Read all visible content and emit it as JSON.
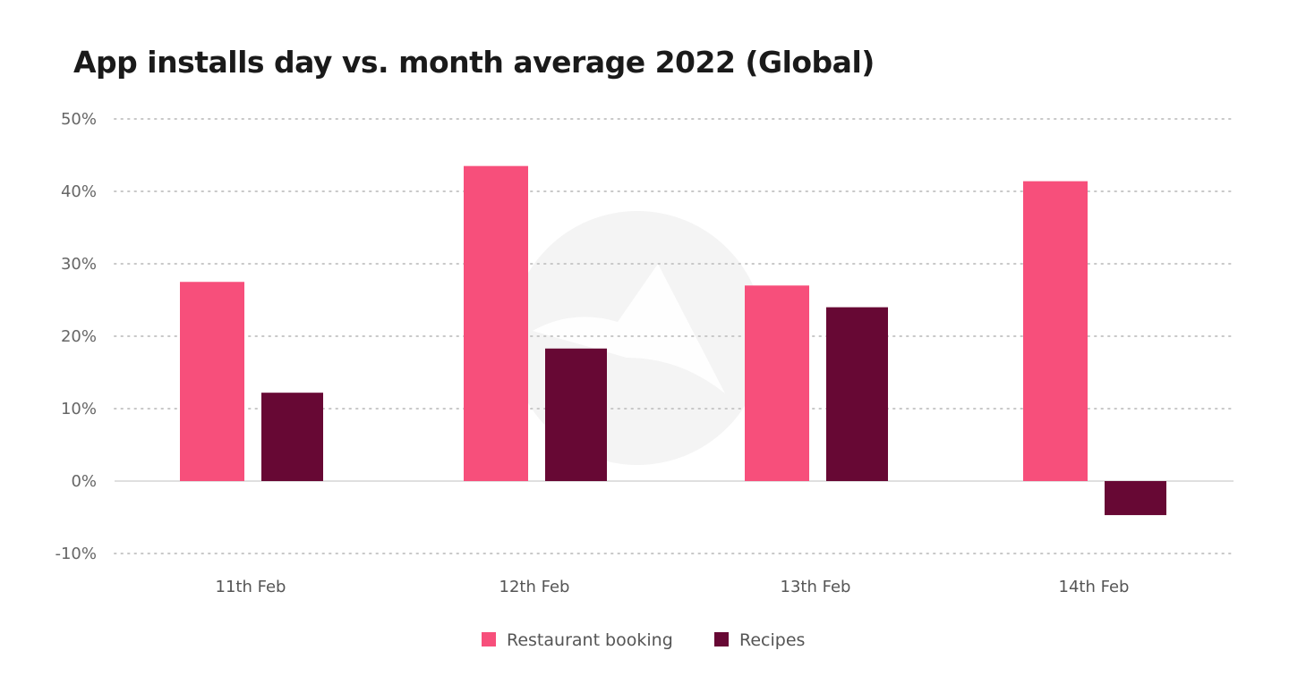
{
  "chart_data": {
    "type": "bar",
    "title": "App installs day vs. month average 2022 (Global)",
    "xlabel": "",
    "ylabel": "",
    "categories": [
      "11th Feb",
      "12th Feb",
      "13th Feb",
      "14th Feb"
    ],
    "series": [
      {
        "name": "Restaurant booking",
        "color": "#f74f7b",
        "values": [
          27.5,
          43.5,
          27.0,
          41.4
        ]
      },
      {
        "name": "Recipes",
        "color": "#670834",
        "values": [
          12.2,
          18.3,
          24.0,
          -4.7
        ]
      }
    ],
    "ylim": [
      -10,
      50
    ],
    "yticks": [
      -10,
      0,
      10,
      20,
      30,
      40,
      50
    ],
    "ytick_labels": [
      "-10%",
      "0%",
      "10%",
      "20%",
      "30%",
      "40%",
      "50%"
    ],
    "grid": true,
    "legend_position": "bottom"
  }
}
